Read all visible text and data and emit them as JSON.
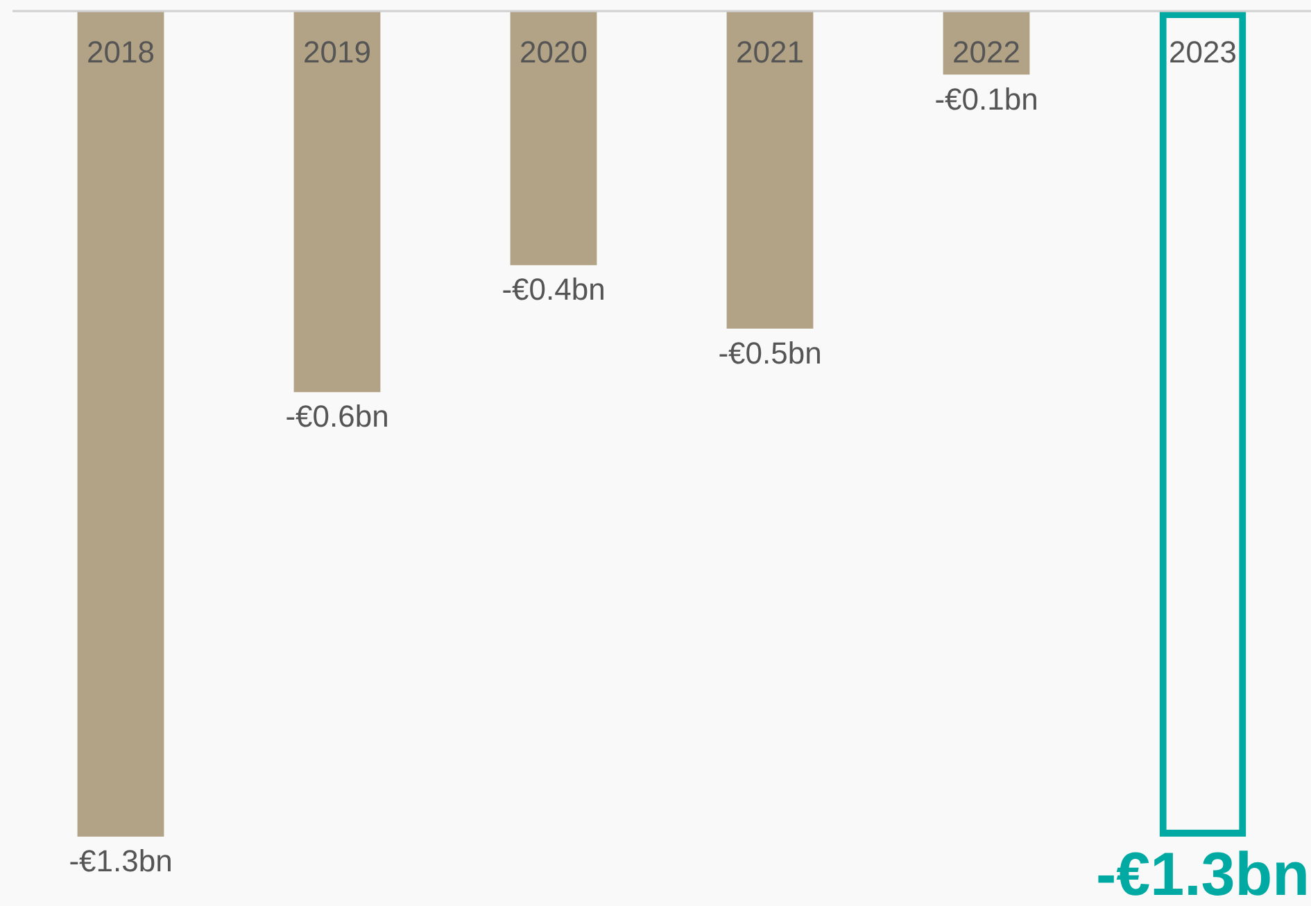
{
  "chart_data": {
    "type": "bar",
    "categories": [
      "2018",
      "2019",
      "2020",
      "2021",
      "2022",
      "2023"
    ],
    "values": [
      -1.3,
      -0.6,
      -0.4,
      -0.5,
      -0.1,
      -1.3
    ],
    "value_labels": [
      "-€1.3bn",
      "-€0.6bn",
      "-€0.4bn",
      "-€0.5bn",
      "-€0.1bn",
      "-€1.3bn"
    ],
    "colors": [
      "#b3a386",
      "#b3a386",
      "#b3a386",
      "#b3a386",
      "#b3a386",
      "#00aaa3"
    ],
    "tick_labels": "x"
  }
}
